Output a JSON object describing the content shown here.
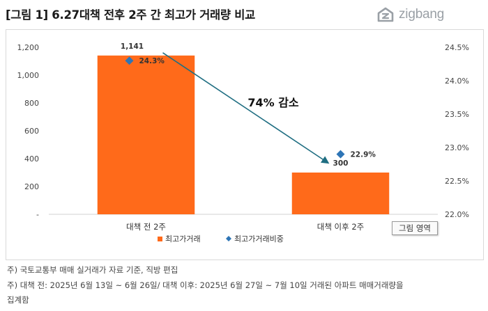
{
  "header": {
    "title": "[그림 1] 6.27대책 전후 2주 간 최고가 거래량 비교",
    "logo_text": "zigbang"
  },
  "colors": {
    "bar": "#FF6A1A",
    "line_marker": "#2E75B6",
    "arrow": "#1F6E82"
  },
  "chart_data": {
    "type": "bar",
    "categories": [
      "대책 전 2주",
      "대책 이후 2주"
    ],
    "series": [
      {
        "name": "최고가거래",
        "type": "bar",
        "axis": "left",
        "values": [
          1141,
          300
        ],
        "labels": [
          "1,141",
          "300"
        ]
      },
      {
        "name": "최고가거래비중",
        "type": "scatter",
        "axis": "right",
        "values": [
          24.3,
          22.9
        ],
        "labels": [
          "24.3%",
          "22.9%"
        ]
      }
    ],
    "y_left": {
      "range": [
        0,
        1200
      ],
      "ticks": [
        0,
        200,
        400,
        600,
        800,
        1000,
        1200
      ],
      "tick_labels": [
        "-",
        "200",
        "400",
        "600",
        "800",
        "1,000",
        "1,200"
      ]
    },
    "y_right": {
      "range": [
        22.0,
        24.5
      ],
      "ticks": [
        22.0,
        22.5,
        23.0,
        23.5,
        24.0,
        24.5
      ],
      "tick_labels": [
        "22.0%",
        "22.5%",
        "23.0%",
        "23.5%",
        "24.0%",
        "24.5%"
      ]
    },
    "annotation": "74% 감소",
    "legend_position": "bottom",
    "grid": false
  },
  "plot_area_label": "그림 영역",
  "footnotes": [
    "주) 국토교통부 매매 실거래가 자료 기준, 직방 편집",
    "주) 대책 전: 2025년 6월 13일 ~ 6월 26일/ 대책 이후: 2025년 6월 27일 ~ 7월 10일 거래된 아파트 매매거래량을",
    "집계함"
  ]
}
